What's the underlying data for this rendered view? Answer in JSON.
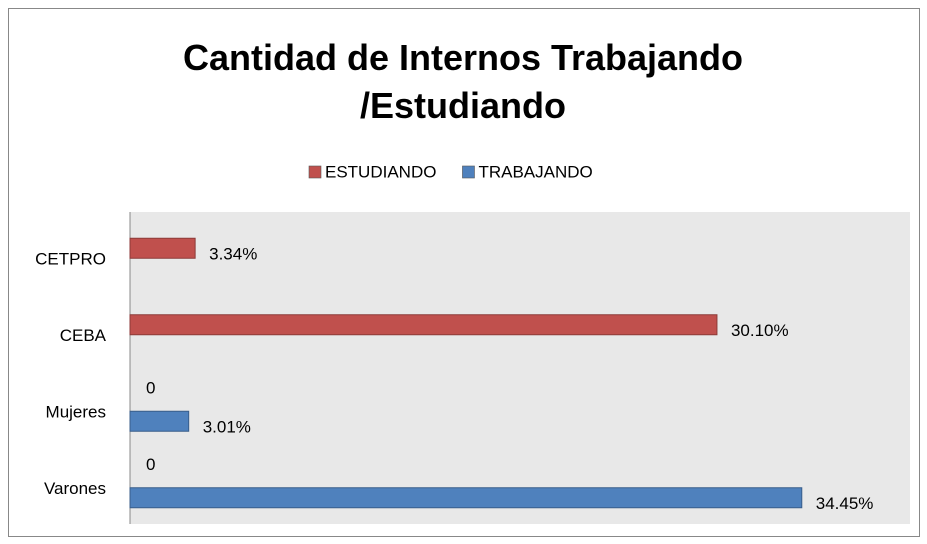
{
  "chart_data": {
    "type": "hbar",
    "title": "Cantidad de Internos Trabajando /Estudiando",
    "categories": [
      "CETPRO",
      "CEBA",
      "Mujeres",
      "Varones"
    ],
    "series": [
      {
        "name": "ESTUDIANDO",
        "color": "#c0504d",
        "values": [
          3.34,
          30.1,
          0,
          0
        ],
        "value_labels": [
          "3.34%",
          "30.10%",
          "0",
          "0"
        ]
      },
      {
        "name": "TRABAJANDO",
        "color": "#4f81bd",
        "values": [
          null,
          null,
          3.01,
          34.45
        ],
        "value_labels": [
          null,
          null,
          "3.01%",
          "34.45%"
        ]
      }
    ],
    "xlim": [
      0,
      40
    ],
    "legend": "top"
  }
}
